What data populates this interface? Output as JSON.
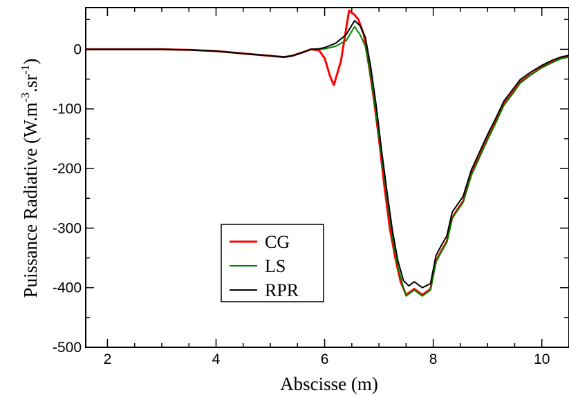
{
  "chart_data": {
    "type": "line",
    "title": "",
    "xlabel": "Abscisse (m)",
    "ylabel": "Puissance Radiative (W.m",
    "ylabel_exp1": "-3",
    "ylabel_mid": ".sr",
    "ylabel_exp2": "-1",
    "ylabel_close": ")",
    "xlim": [
      1.6,
      10.5
    ],
    "ylim": [
      -500,
      70
    ],
    "xticks": [
      2,
      4,
      6,
      8,
      10
    ],
    "xtick_labels": [
      "2",
      "4",
      "6",
      "8",
      "10"
    ],
    "yticks": [
      0,
      -100,
      -200,
      -300,
      -400,
      -500
    ],
    "ytick_labels": [
      "0",
      "-100",
      "-200",
      "-300",
      "-400",
      "-500"
    ],
    "grid": false,
    "legend_position": "lower-left-center",
    "series": [
      {
        "name": "CG",
        "color": "#ff0000",
        "points": [
          [
            1.6,
            0
          ],
          [
            2.0,
            0
          ],
          [
            2.5,
            0
          ],
          [
            3.0,
            0
          ],
          [
            3.5,
            -1
          ],
          [
            4.0,
            -3
          ],
          [
            4.5,
            -7
          ],
          [
            5.0,
            -11
          ],
          [
            5.25,
            -13
          ],
          [
            5.4,
            -11
          ],
          [
            5.6,
            -5
          ],
          [
            5.75,
            0
          ],
          [
            5.9,
            -2
          ],
          [
            6.0,
            -15
          ],
          [
            6.1,
            -45
          ],
          [
            6.17,
            -60
          ],
          [
            6.3,
            -20
          ],
          [
            6.45,
            65
          ],
          [
            6.55,
            58
          ],
          [
            6.62,
            50
          ],
          [
            6.72,
            25
          ],
          [
            6.82,
            -30
          ],
          [
            6.9,
            -80
          ],
          [
            7.0,
            -150
          ],
          [
            7.1,
            -230
          ],
          [
            7.2,
            -300
          ],
          [
            7.3,
            -350
          ],
          [
            7.4,
            -390
          ],
          [
            7.5,
            -412
          ],
          [
            7.65,
            -402
          ],
          [
            7.8,
            -412
          ],
          [
            7.95,
            -402
          ],
          [
            8.05,
            -355
          ],
          [
            8.15,
            -338
          ],
          [
            8.25,
            -322
          ],
          [
            8.35,
            -282
          ],
          [
            8.45,
            -268
          ],
          [
            8.55,
            -255
          ],
          [
            8.7,
            -210
          ],
          [
            8.85,
            -180
          ],
          [
            9.0,
            -150
          ],
          [
            9.15,
            -122
          ],
          [
            9.3,
            -92
          ],
          [
            9.5,
            -68
          ],
          [
            9.6,
            -55
          ],
          [
            9.8,
            -42
          ],
          [
            10.0,
            -30
          ],
          [
            10.2,
            -21
          ],
          [
            10.35,
            -15
          ],
          [
            10.5,
            -12
          ]
        ]
      },
      {
        "name": "LS",
        "color": "#008000",
        "points": [
          [
            1.6,
            0
          ],
          [
            2.0,
            0
          ],
          [
            2.5,
            0
          ],
          [
            3.0,
            0
          ],
          [
            3.5,
            -1
          ],
          [
            4.0,
            -3
          ],
          [
            4.5,
            -7
          ],
          [
            5.0,
            -11
          ],
          [
            5.25,
            -13
          ],
          [
            5.4,
            -11
          ],
          [
            5.6,
            -5
          ],
          [
            5.75,
            0
          ],
          [
            5.9,
            0
          ],
          [
            6.0,
            1
          ],
          [
            6.2,
            5
          ],
          [
            6.4,
            15
          ],
          [
            6.55,
            38
          ],
          [
            6.65,
            25
          ],
          [
            6.75,
            5
          ],
          [
            6.85,
            -45
          ],
          [
            6.95,
            -110
          ],
          [
            7.05,
            -180
          ],
          [
            7.15,
            -250
          ],
          [
            7.25,
            -315
          ],
          [
            7.35,
            -365
          ],
          [
            7.45,
            -400
          ],
          [
            7.5,
            -414
          ],
          [
            7.65,
            -404
          ],
          [
            7.8,
            -414
          ],
          [
            7.95,
            -404
          ],
          [
            8.05,
            -357
          ],
          [
            8.15,
            -340
          ],
          [
            8.25,
            -324
          ],
          [
            8.35,
            -284
          ],
          [
            8.45,
            -270
          ],
          [
            8.55,
            -257
          ],
          [
            8.7,
            -212
          ],
          [
            8.85,
            -182
          ],
          [
            9.0,
            -152
          ],
          [
            9.15,
            -124
          ],
          [
            9.3,
            -94
          ],
          [
            9.5,
            -70
          ],
          [
            9.6,
            -57
          ],
          [
            9.8,
            -43
          ],
          [
            10.0,
            -31
          ],
          [
            10.2,
            -22
          ],
          [
            10.35,
            -16
          ],
          [
            10.5,
            -13
          ]
        ]
      },
      {
        "name": "RPR",
        "color": "#000000",
        "points": [
          [
            1.6,
            0
          ],
          [
            2.0,
            0
          ],
          [
            2.5,
            0
          ],
          [
            3.0,
            0
          ],
          [
            3.5,
            -1
          ],
          [
            4.0,
            -3
          ],
          [
            4.5,
            -7
          ],
          [
            5.0,
            -11
          ],
          [
            5.25,
            -13
          ],
          [
            5.4,
            -11
          ],
          [
            5.6,
            -5
          ],
          [
            5.75,
            0
          ],
          [
            5.9,
            1
          ],
          [
            6.0,
            3
          ],
          [
            6.2,
            10
          ],
          [
            6.4,
            25
          ],
          [
            6.55,
            48
          ],
          [
            6.65,
            40
          ],
          [
            6.75,
            20
          ],
          [
            6.85,
            -30
          ],
          [
            6.95,
            -95
          ],
          [
            7.05,
            -170
          ],
          [
            7.15,
            -240
          ],
          [
            7.25,
            -305
          ],
          [
            7.35,
            -355
          ],
          [
            7.45,
            -388
          ],
          [
            7.55,
            -397
          ],
          [
            7.65,
            -390
          ],
          [
            7.8,
            -400
          ],
          [
            7.95,
            -393
          ],
          [
            8.05,
            -346
          ],
          [
            8.15,
            -329
          ],
          [
            8.25,
            -313
          ],
          [
            8.35,
            -273
          ],
          [
            8.45,
            -260
          ],
          [
            8.55,
            -247
          ],
          [
            8.7,
            -203
          ],
          [
            8.85,
            -173
          ],
          [
            9.0,
            -143
          ],
          [
            9.15,
            -116
          ],
          [
            9.3,
            -87
          ],
          [
            9.5,
            -63
          ],
          [
            9.6,
            -51
          ],
          [
            9.8,
            -38
          ],
          [
            10.0,
            -27
          ],
          [
            10.2,
            -18
          ],
          [
            10.35,
            -13
          ],
          [
            10.5,
            -10
          ]
        ]
      }
    ]
  }
}
